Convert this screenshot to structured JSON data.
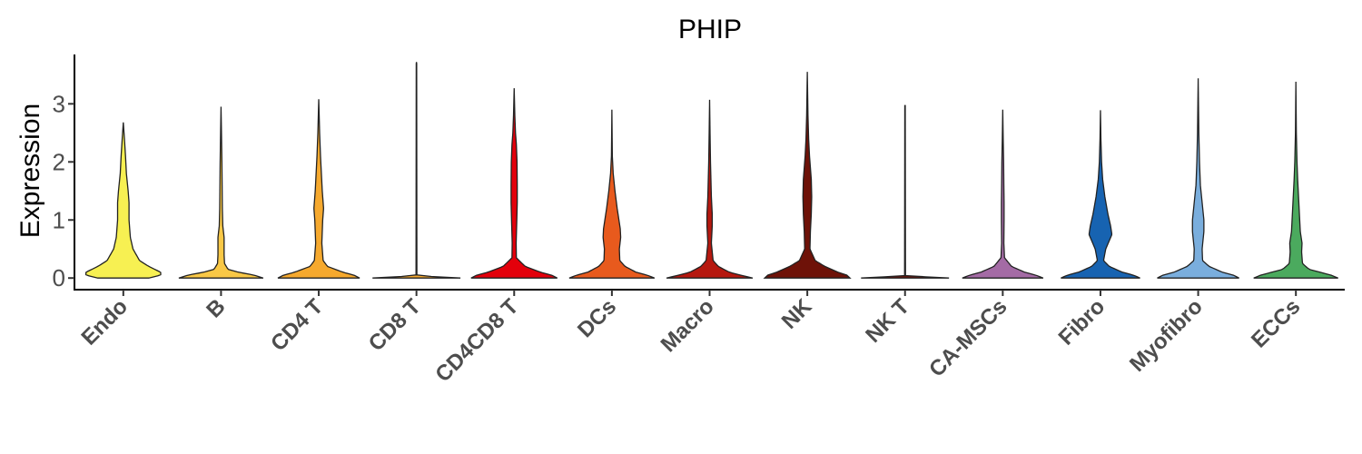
{
  "chart_data": {
    "type": "violin",
    "title": "PHIP",
    "ylabel": "Expression",
    "xlabel": "",
    "ylim": [
      -0.2,
      3.85
    ],
    "yticks": [
      0,
      1,
      2,
      3
    ],
    "grid": false,
    "legend": "none",
    "categories": [
      "Endo",
      "B",
      "CD4 T",
      "CD8 T",
      "CD4CD8 T",
      "DCs",
      "Macro",
      "NK",
      "NK T",
      "CA-MSCs",
      "Fibro",
      "Myofibro",
      "ECCs"
    ],
    "series": [
      {
        "color": "#F7F052",
        "max": 2.68,
        "profile": [
          [
            0,
            0.58
          ],
          [
            0.05,
            0.85
          ],
          [
            0.1,
            0.85
          ],
          [
            0.2,
            0.58
          ],
          [
            0.3,
            0.37
          ],
          [
            0.5,
            0.22
          ],
          [
            0.7,
            0.16
          ],
          [
            1.0,
            0.13
          ],
          [
            1.3,
            0.13
          ],
          [
            1.5,
            0.11
          ],
          [
            1.8,
            0.07
          ],
          [
            2.1,
            0.05
          ],
          [
            2.4,
            0.025
          ],
          [
            2.68,
            0
          ]
        ]
      },
      {
        "color": "#F9C846",
        "max": 2.95,
        "profile": [
          [
            0,
            0.96
          ],
          [
            0.05,
            0.75
          ],
          [
            0.1,
            0.4
          ],
          [
            0.15,
            0.16
          ],
          [
            0.25,
            0.08
          ],
          [
            0.4,
            0.07
          ],
          [
            0.7,
            0.07
          ],
          [
            0.9,
            0.04
          ],
          [
            1.2,
            0.03
          ],
          [
            1.6,
            0.025
          ],
          [
            2.0,
            0.02
          ],
          [
            2.5,
            0.01
          ],
          [
            2.95,
            0
          ]
        ]
      },
      {
        "color": "#F6A92E",
        "max": 3.08,
        "profile": [
          [
            0,
            0.93
          ],
          [
            0.05,
            0.8
          ],
          [
            0.1,
            0.55
          ],
          [
            0.2,
            0.2
          ],
          [
            0.3,
            0.1
          ],
          [
            0.6,
            0.07
          ],
          [
            1.0,
            0.09
          ],
          [
            1.2,
            0.11
          ],
          [
            1.5,
            0.08
          ],
          [
            1.8,
            0.06
          ],
          [
            2.1,
            0.04
          ],
          [
            2.5,
            0.02
          ],
          [
            3.08,
            0
          ]
        ]
      },
      {
        "color": "#F6A92E",
        "max": 3.72,
        "profile": [
          [
            0,
            1.0
          ],
          [
            0.02,
            0.5
          ],
          [
            0.04,
            0.01
          ],
          [
            3.72,
            0.005
          ]
        ]
      },
      {
        "color": "#E3000B",
        "max": 3.27,
        "profile": [
          [
            0,
            0.98
          ],
          [
            0.05,
            0.85
          ],
          [
            0.1,
            0.6
          ],
          [
            0.2,
            0.25
          ],
          [
            0.35,
            0.05
          ],
          [
            0.6,
            0.045
          ],
          [
            1.0,
            0.06
          ],
          [
            1.3,
            0.07
          ],
          [
            1.6,
            0.07
          ],
          [
            2.0,
            0.065
          ],
          [
            2.3,
            0.05
          ],
          [
            2.5,
            0.03
          ],
          [
            2.8,
            0.015
          ],
          [
            3.27,
            0
          ]
        ]
      },
      {
        "color": "#E85A1D",
        "max": 2.9,
        "profile": [
          [
            0,
            0.97
          ],
          [
            0.05,
            0.8
          ],
          [
            0.1,
            0.55
          ],
          [
            0.2,
            0.3
          ],
          [
            0.3,
            0.18
          ],
          [
            0.5,
            0.17
          ],
          [
            0.7,
            0.2
          ],
          [
            0.85,
            0.19
          ],
          [
            1.2,
            0.12
          ],
          [
            1.5,
            0.07
          ],
          [
            1.8,
            0.03
          ],
          [
            2.1,
            0.01
          ],
          [
            2.5,
            0.005
          ],
          [
            2.9,
            0
          ]
        ]
      },
      {
        "color": "#B6180F",
        "max": 3.07,
        "profile": [
          [
            0,
            0.98
          ],
          [
            0.05,
            0.7
          ],
          [
            0.1,
            0.45
          ],
          [
            0.2,
            0.2
          ],
          [
            0.3,
            0.08
          ],
          [
            0.6,
            0.04
          ],
          [
            0.9,
            0.06
          ],
          [
            1.1,
            0.06
          ],
          [
            1.4,
            0.04
          ],
          [
            1.7,
            0.03
          ],
          [
            2.0,
            0.02
          ],
          [
            2.5,
            0.01
          ],
          [
            3.07,
            0
          ]
        ]
      },
      {
        "color": "#6E1208",
        "max": 3.55,
        "profile": [
          [
            0,
            0.97
          ],
          [
            0.05,
            0.9
          ],
          [
            0.1,
            0.7
          ],
          [
            0.2,
            0.4
          ],
          [
            0.3,
            0.18
          ],
          [
            0.5,
            0.06
          ],
          [
            0.8,
            0.07
          ],
          [
            1.1,
            0.09
          ],
          [
            1.4,
            0.1
          ],
          [
            1.7,
            0.09
          ],
          [
            1.9,
            0.07
          ],
          [
            2.1,
            0.05
          ],
          [
            2.4,
            0.03
          ],
          [
            2.8,
            0.015
          ],
          [
            3.55,
            0
          ]
        ]
      },
      {
        "color": "#6E1208",
        "max": 2.97,
        "profile": [
          [
            0,
            1.0
          ],
          [
            0.02,
            0.5
          ],
          [
            0.04,
            0.01
          ],
          [
            2.97,
            0.005
          ]
        ]
      },
      {
        "color": "#A46BA5",
        "max": 2.9,
        "profile": [
          [
            0,
            0.92
          ],
          [
            0.05,
            0.75
          ],
          [
            0.1,
            0.5
          ],
          [
            0.2,
            0.2
          ],
          [
            0.35,
            0.04
          ],
          [
            0.6,
            0.025
          ],
          [
            1.0,
            0.03
          ],
          [
            1.3,
            0.03
          ],
          [
            1.6,
            0.025
          ],
          [
            2.0,
            0.02
          ],
          [
            2.4,
            0.01
          ],
          [
            2.9,
            0
          ]
        ]
      },
      {
        "color": "#1763B1",
        "max": 2.89,
        "profile": [
          [
            0,
            0.9
          ],
          [
            0.05,
            0.75
          ],
          [
            0.1,
            0.5
          ],
          [
            0.2,
            0.2
          ],
          [
            0.3,
            0.07
          ],
          [
            0.5,
            0.12
          ],
          [
            0.75,
            0.26
          ],
          [
            0.9,
            0.23
          ],
          [
            1.1,
            0.17
          ],
          [
            1.4,
            0.1
          ],
          [
            1.7,
            0.05
          ],
          [
            2.0,
            0.025
          ],
          [
            2.4,
            0.01
          ],
          [
            2.89,
            0
          ]
        ]
      },
      {
        "color": "#7AAEDD",
        "max": 3.44,
        "profile": [
          [
            0,
            0.93
          ],
          [
            0.05,
            0.8
          ],
          [
            0.1,
            0.55
          ],
          [
            0.2,
            0.25
          ],
          [
            0.3,
            0.1
          ],
          [
            0.5,
            0.09
          ],
          [
            0.8,
            0.13
          ],
          [
            1.0,
            0.13
          ],
          [
            1.3,
            0.09
          ],
          [
            1.6,
            0.05
          ],
          [
            2.0,
            0.03
          ],
          [
            2.5,
            0.015
          ],
          [
            3.44,
            0
          ]
        ]
      },
      {
        "color": "#4BAA5E",
        "max": 3.38,
        "profile": [
          [
            0,
            0.96
          ],
          [
            0.05,
            0.8
          ],
          [
            0.1,
            0.55
          ],
          [
            0.15,
            0.3
          ],
          [
            0.25,
            0.15
          ],
          [
            0.45,
            0.13
          ],
          [
            0.6,
            0.14
          ],
          [
            0.8,
            0.1
          ],
          [
            1.1,
            0.08
          ],
          [
            1.4,
            0.06
          ],
          [
            1.7,
            0.04
          ],
          [
            2.0,
            0.025
          ],
          [
            2.5,
            0.01
          ],
          [
            3.38,
            0
          ]
        ]
      }
    ]
  }
}
